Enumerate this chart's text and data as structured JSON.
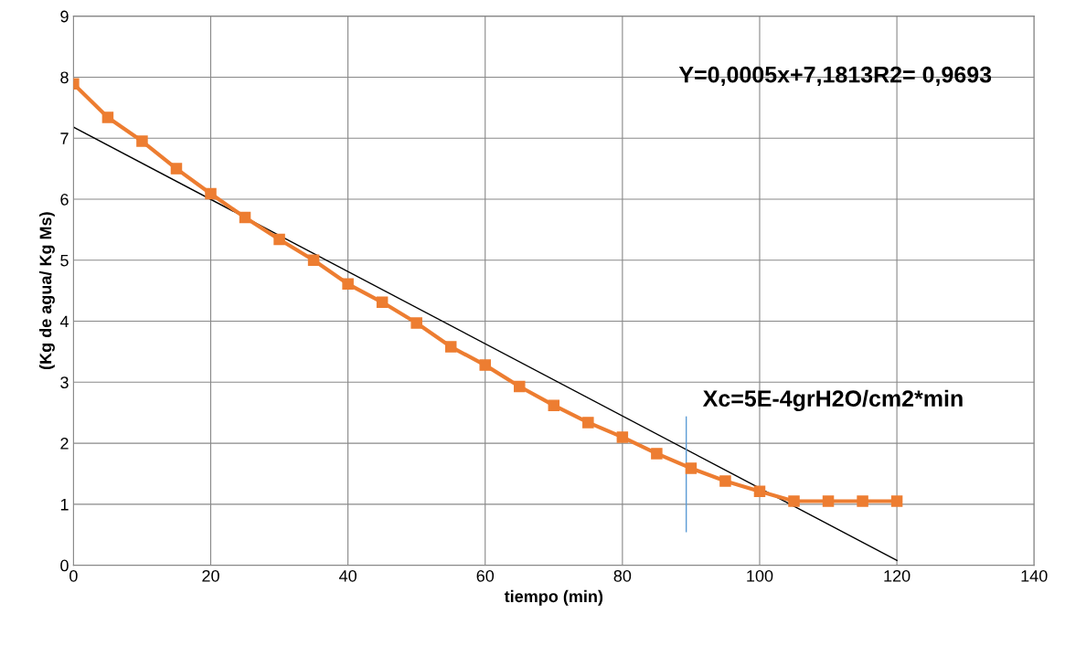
{
  "chart_data": {
    "type": "line",
    "xlabel": "tiempo (min)",
    "ylabel": "(Kg de agua/ Kg Ms)",
    "xlim": [
      0,
      140
    ],
    "xticks": [
      0,
      20,
      40,
      60,
      80,
      100,
      120,
      140
    ],
    "ylim": [
      0,
      9
    ],
    "yticks": [
      0,
      1,
      2,
      3,
      4,
      5,
      6,
      7,
      8,
      9
    ],
    "grid": true,
    "marker": "square",
    "x": [
      0,
      5,
      10,
      15,
      20,
      25,
      30,
      35,
      40,
      45,
      50,
      55,
      60,
      65,
      70,
      75,
      80,
      85,
      90,
      95,
      100,
      105,
      110,
      115,
      120
    ],
    "series": [
      {
        "color": "#ed7d31",
        "values": [
          7.89,
          7.34,
          6.95,
          6.5,
          6.09,
          5.7,
          5.34,
          5.0,
          4.61,
          4.31,
          3.97,
          3.58,
          3.28,
          2.93,
          2.62,
          2.34,
          2.1,
          1.83,
          1.59,
          1.38,
          1.21,
          1.05,
          1.05,
          1.05,
          1.05
        ]
      },
      {
        "type": "line",
        "color": "#000000",
        "marker": "none",
        "x": [
          0,
          120
        ],
        "values": [
          7.18,
          0.08
        ]
      },
      {
        "type": "line",
        "color": "#5b9bd5",
        "marker": "none",
        "x": [
          89.3,
          89.3
        ],
        "values": [
          0.55,
          2.43
        ]
      }
    ],
    "annotations": [
      "Y=0,0005x+7,1813R2= 0,9693",
      "Xc=5E-4grH2O/cm2*min"
    ]
  }
}
